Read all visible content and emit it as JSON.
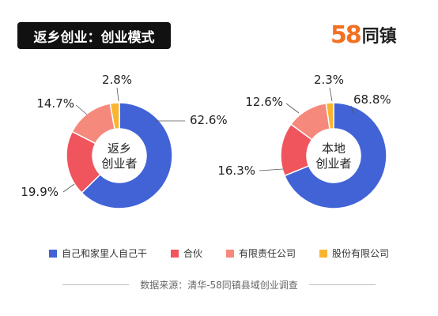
{
  "header": {
    "title": "返乡创业：创业模式",
    "logo_digits": "58",
    "logo_text": "同镇"
  },
  "chart_data": [
    {
      "type": "pie",
      "center_label": [
        "返乡",
        "创业者"
      ],
      "categories": [
        "自己和家里人自己干",
        "合伙",
        "有限责任公司",
        "股份有限公司"
      ],
      "values": [
        62.6,
        19.9,
        14.7,
        2.8
      ],
      "labels": [
        "62.6%",
        "19.9%",
        "14.7%",
        "2.8%"
      ]
    },
    {
      "type": "pie",
      "center_label": [
        "本地",
        "创业者"
      ],
      "categories": [
        "自己和家里人自己干",
        "合伙",
        "有限责任公司",
        "股份有限公司"
      ],
      "values": [
        68.8,
        16.3,
        12.6,
        2.3
      ],
      "labels": [
        "68.8%",
        "16.3%",
        "12.6%",
        "2.3%"
      ]
    }
  ],
  "legend": [
    {
      "label": "自己和家里人自己干",
      "color": "#4163d6"
    },
    {
      "label": "合伙",
      "color": "#f0555e"
    },
    {
      "label": "有限责任公司",
      "color": "#f5897c"
    },
    {
      "label": "股份有限公司",
      "color": "#f9b52f"
    }
  ],
  "colors": [
    "#4163d6",
    "#f0555e",
    "#f5897c",
    "#f9b52f"
  ],
  "source": "数据来源：清华-58同镇县域创业调查"
}
